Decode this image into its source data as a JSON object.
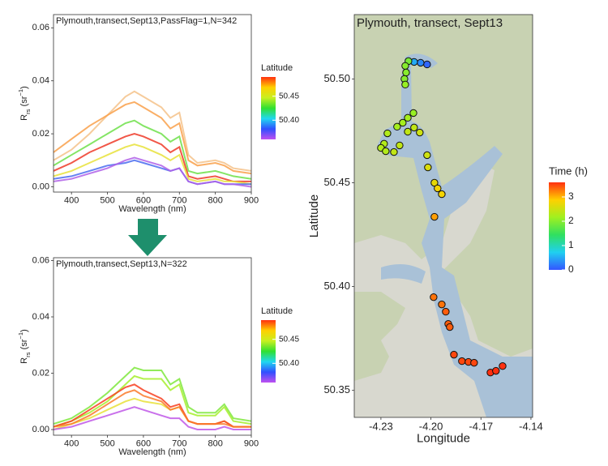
{
  "chart_data": [
    {
      "type": "line",
      "title": "Plymouth,transect,Sept13,PassFlag=1,N=342",
      "xlabel": "Wavelength (nm)",
      "ylabel": [
        "R",
        "rs",
        " (sr",
        "−1",
        ")"
      ],
      "x": [
        350,
        400,
        450,
        500,
        550,
        575,
        600,
        650,
        675,
        700,
        725,
        750,
        800,
        825,
        850,
        900
      ],
      "xlim": [
        350,
        900
      ],
      "xticks": [
        400,
        500,
        600,
        700,
        800,
        900
      ],
      "ylim": [
        -0.002,
        0.065
      ],
      "yticks": [
        {
          "value": 0,
          "label": "0.00"
        },
        {
          "value": 0.02,
          "label": "0.02"
        },
        {
          "value": 0.04,
          "label": "0.04"
        },
        {
          "value": 0.06,
          "label": "0.06"
        }
      ],
      "series": [
        {
          "color": "#f5c28a",
          "values": [
            0.01,
            0.014,
            0.02,
            0.027,
            0.034,
            0.036,
            0.034,
            0.03,
            0.026,
            0.028,
            0.012,
            0.009,
            0.01,
            0.009,
            0.007,
            0.006
          ]
        },
        {
          "color": "#f9a04a",
          "values": [
            0.013,
            0.018,
            0.023,
            0.027,
            0.031,
            0.032,
            0.03,
            0.026,
            0.022,
            0.024,
            0.01,
            0.008,
            0.009,
            0.008,
            0.006,
            0.005
          ]
        },
        {
          "color": "#6fe04a",
          "values": [
            0.008,
            0.012,
            0.016,
            0.02,
            0.024,
            0.025,
            0.023,
            0.02,
            0.017,
            0.019,
            0.006,
            0.005,
            0.006,
            0.005,
            0.004,
            0.003
          ]
        },
        {
          "color": "#ee3a28",
          "values": [
            0.006,
            0.009,
            0.013,
            0.016,
            0.019,
            0.02,
            0.019,
            0.016,
            0.013,
            0.015,
            0.004,
            0.003,
            0.004,
            0.003,
            0.002,
            0.002
          ]
        },
        {
          "color": "#e8e23a",
          "values": [
            0.004,
            0.006,
            0.009,
            0.012,
            0.015,
            0.016,
            0.015,
            0.012,
            0.01,
            0.012,
            0.003,
            0.002,
            0.003,
            0.002,
            0.002,
            0.001
          ]
        },
        {
          "color": "#4a6cf0",
          "values": [
            0.003,
            0.004,
            0.006,
            0.008,
            0.009,
            0.01,
            0.009,
            0.007,
            0.006,
            0.007,
            0.002,
            0.001,
            0.002,
            0.001,
            0.001,
            0.001
          ]
        },
        {
          "color": "#b060e8",
          "values": [
            0.002,
            0.003,
            0.005,
            0.007,
            0.01,
            0.011,
            0.01,
            0.008,
            0.006,
            0.007,
            0.002,
            0.001,
            0.002,
            0.001,
            0.001,
            0.0
          ]
        }
      ],
      "colorbar": {
        "title": "Latitude",
        "lim": [
          50.36,
          50.49
        ],
        "ticks": [
          {
            "value": 50.4,
            "label": "50.40"
          },
          50.45
        ],
        "colors": [
          "#c050f0",
          "#3050ff",
          "#20d8f0",
          "#30e030",
          "#c8f020",
          "#ffd000",
          "#ff3010"
        ]
      }
    },
    {
      "type": "line",
      "title": "Plymouth,transect,Sept13,N=322",
      "xlabel": "Wavelength (nm)",
      "ylabel": [
        "R",
        "rs",
        " (sr",
        "−1",
        ")"
      ],
      "x": [
        350,
        400,
        450,
        500,
        550,
        575,
        600,
        650,
        675,
        700,
        725,
        750,
        800,
        825,
        850,
        900
      ],
      "xlim": [
        350,
        900
      ],
      "xticks": [
        400,
        500,
        600,
        700,
        800,
        900
      ],
      "ylim": [
        -0.002,
        0.061
      ],
      "yticks": [
        {
          "value": 0,
          "label": "0.00"
        },
        {
          "value": 0.02,
          "label": "0.02"
        },
        {
          "value": 0.04,
          "label": "0.04"
        },
        {
          "value": 0.06,
          "label": "0.06"
        }
      ],
      "series": [
        {
          "color": "#7ee83c",
          "values": [
            0.002,
            0.004,
            0.008,
            0.013,
            0.019,
            0.022,
            0.021,
            0.021,
            0.016,
            0.018,
            0.008,
            0.006,
            0.006,
            0.009,
            0.004,
            0.003
          ]
        },
        {
          "color": "#a6ee2c",
          "values": [
            0.001,
            0.003,
            0.006,
            0.01,
            0.016,
            0.019,
            0.018,
            0.018,
            0.014,
            0.016,
            0.006,
            0.005,
            0.005,
            0.008,
            0.003,
            0.002
          ]
        },
        {
          "color": "#e8e03a",
          "values": [
            0.0,
            0.002,
            0.004,
            0.007,
            0.01,
            0.011,
            0.01,
            0.009,
            0.007,
            0.008,
            0.003,
            0.002,
            0.002,
            0.003,
            0.001,
            0.001
          ]
        },
        {
          "color": "#f84020",
          "values": [
            0.001,
            0.003,
            0.007,
            0.011,
            0.015,
            0.016,
            0.014,
            0.011,
            0.008,
            0.009,
            0.003,
            0.002,
            0.002,
            0.003,
            0.001,
            0.001
          ]
        },
        {
          "color": "#fa7a2a",
          "values": [
            0.001,
            0.002,
            0.005,
            0.009,
            0.013,
            0.014,
            0.012,
            0.01,
            0.007,
            0.008,
            0.003,
            0.002,
            0.002,
            0.002,
            0.001,
            0.001
          ]
        },
        {
          "color": "#c058e8",
          "values": [
            0.0,
            0.001,
            0.003,
            0.005,
            0.007,
            0.008,
            0.007,
            0.005,
            0.004,
            0.004,
            0.001,
            0.0,
            0.0,
            0.001,
            0.0,
            0.0
          ]
        }
      ],
      "colorbar": {
        "title": "Latitude",
        "lim": [
          50.36,
          50.49
        ],
        "ticks": [
          {
            "value": 50.4,
            "label": "50.40"
          },
          50.45
        ],
        "colors": [
          "#c050f0",
          "#3050ff",
          "#20d8f0",
          "#30e030",
          "#c8f020",
          "#ffd000",
          "#ff3010"
        ]
      }
    },
    {
      "type": "scatter",
      "title": "Plymouth, transect, Sept13",
      "xlabel": "Longitude",
      "ylabel": "Latitude",
      "x": [
        -4.2023,
        -4.2062,
        -4.2101,
        -4.2135,
        -4.2154,
        -4.2149,
        -4.2159,
        -4.2154,
        -4.2105,
        -4.2139,
        -4.2169,
        -4.2203,
        -4.2261,
        -4.2281,
        -4.23,
        -4.2271,
        -4.2222,
        -4.2188,
        -4.2139,
        -4.2101,
        -4.2067,
        -4.2023,
        -4.2018,
        -4.1979,
        -4.196,
        -4.1935,
        -4.1979,
        -4.1984,
        -4.1935,
        -4.1911,
        -4.1896,
        -4.1887,
        -4.1862,
        -4.1814,
        -4.1775,
        -4.1741,
        -4.1643,
        -4.161,
        -4.157
      ],
      "values": [
        50.507,
        50.5078,
        50.5082,
        50.5086,
        50.5063,
        50.5031,
        50.5,
        50.4973,
        50.4836,
        50.4813,
        50.4789,
        50.477,
        50.4738,
        50.4688,
        50.4668,
        50.4652,
        50.4648,
        50.468,
        50.4746,
        50.4766,
        50.4742,
        50.4633,
        50.4574,
        50.45,
        50.4473,
        50.4445,
        50.4336,
        50.3949,
        50.3914,
        50.3879,
        50.382,
        50.3805,
        50.3672,
        50.3641,
        50.3637,
        50.3633,
        50.3586,
        50.3594,
        50.3617
      ],
      "time": [
        0.1,
        0.3,
        0.5,
        1.9,
        2.0,
        2.0,
        2.0,
        2.1,
        2.1,
        2.2,
        2.2,
        2.2,
        2.3,
        2.3,
        2.3,
        2.3,
        2.4,
        2.4,
        2.4,
        2.4,
        2.5,
        2.5,
        2.6,
        2.7,
        2.8,
        2.8,
        3.1,
        3.3,
        3.3,
        3.4,
        3.4,
        3.4,
        3.5,
        3.5,
        3.5,
        3.5,
        3.6,
        3.6,
        3.7
      ],
      "xlim": [
        -4.246,
        -4.139
      ],
      "xticks": [
        -4.23,
        {
          "value": -4.2,
          "label": "-4.20"
        },
        -4.17,
        -4.14
      ],
      "ylim": [
        50.337,
        50.531
      ],
      "yticks": [
        50.35,
        {
          "value": 50.4,
          "label": "50.40"
        },
        50.45,
        {
          "value": 50.5,
          "label": "50.50"
        }
      ],
      "colorbar": {
        "title": "Time (h)",
        "lim": [
          0,
          3.6
        ],
        "ticks": [
          0,
          1,
          2,
          3
        ],
        "colors": [
          "#3355ff",
          "#20d0f0",
          "#30e060",
          "#a0f020",
          "#ffd000",
          "#ff3010"
        ]
      }
    }
  ]
}
